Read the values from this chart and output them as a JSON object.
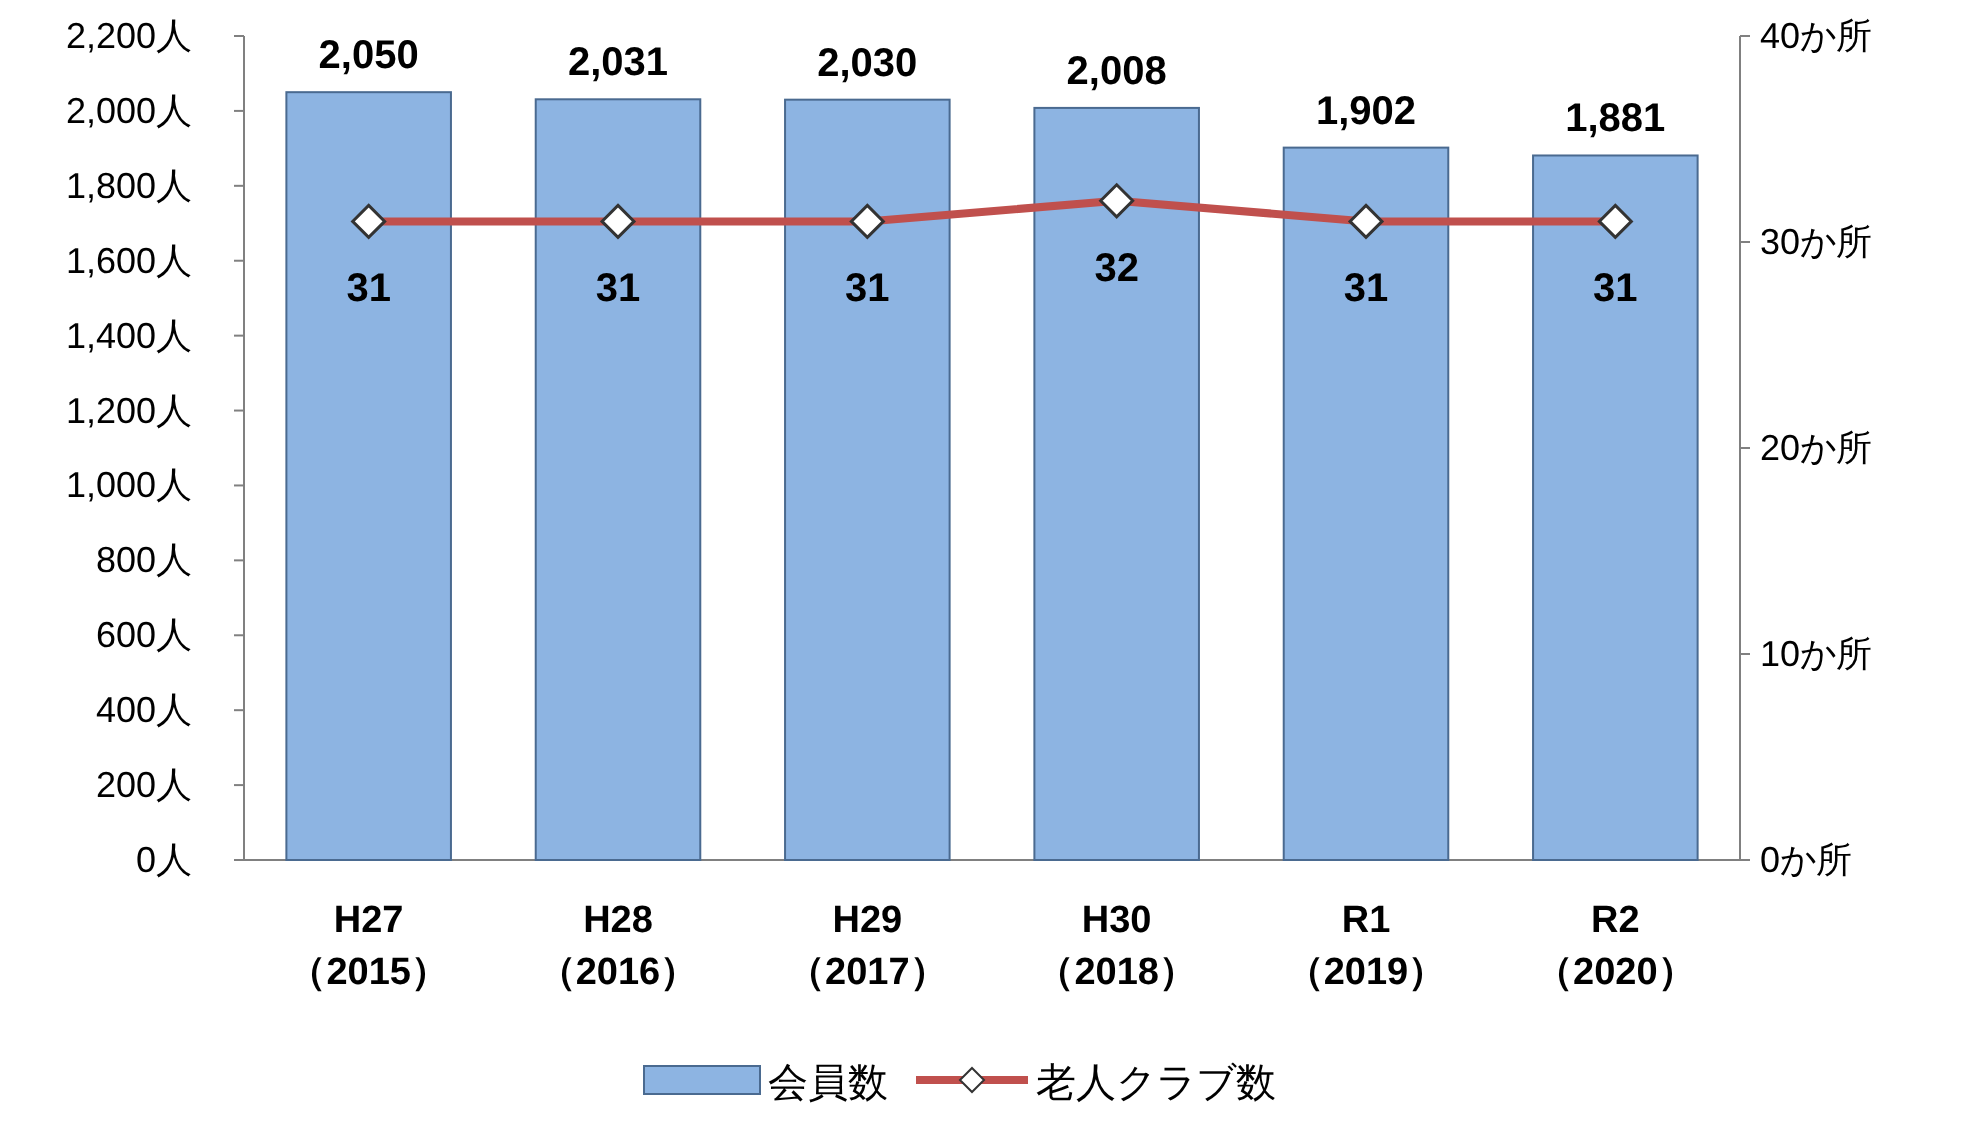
{
  "chart_data": {
    "type": "bar",
    "categories": [
      "H27\n（2015）",
      "H28\n（2016）",
      "H29\n（2017）",
      "H30\n（2018）",
      "R1\n（2019）",
      "R2\n（2020）"
    ],
    "series": [
      {
        "name": "会員数",
        "color": "#8db4e2",
        "values": [
          2050,
          2031,
          2030,
          2008,
          1902,
          1881
        ],
        "value_labels": [
          "2,050",
          "2,031",
          "2,030",
          "2,008",
          "1,902",
          "1,881"
        ]
      },
      {
        "name": "老人クラブ数",
        "type": "line",
        "axis": "y2",
        "color": "#c0504d",
        "marker": "diamond",
        "values": [
          31,
          31,
          31,
          32,
          31,
          31
        ],
        "value_labels": [
          "31",
          "31",
          "31",
          "32",
          "31",
          "31"
        ]
      }
    ],
    "ylim": [
      0,
      2200
    ],
    "yticks": [
      {
        "value": 0,
        "label": "0人"
      },
      {
        "value": 200,
        "label": "200人"
      },
      {
        "value": 400,
        "label": "400人"
      },
      {
        "value": 600,
        "label": "600人"
      },
      {
        "value": 800,
        "label": "800人"
      },
      {
        "value": 1000,
        "label": "1,000人"
      },
      {
        "value": 1200,
        "label": "1,200人"
      },
      {
        "value": 1400,
        "label": "1,400人"
      },
      {
        "value": 1600,
        "label": "1,600人"
      },
      {
        "value": 1800,
        "label": "1,800人"
      },
      {
        "value": 2000,
        "label": "2,000人"
      },
      {
        "value": 2200,
        "label": "2,200人"
      }
    ],
    "y2lim": [
      0,
      40
    ],
    "y2ticks": [
      {
        "value": 0,
        "label": "0か所"
      },
      {
        "value": 10,
        "label": "10か所"
      },
      {
        "value": 20,
        "label": "20か所"
      },
      {
        "value": 30,
        "label": "30か所"
      },
      {
        "value": 40,
        "label": "40か所"
      }
    ],
    "legend": "bottom"
  }
}
